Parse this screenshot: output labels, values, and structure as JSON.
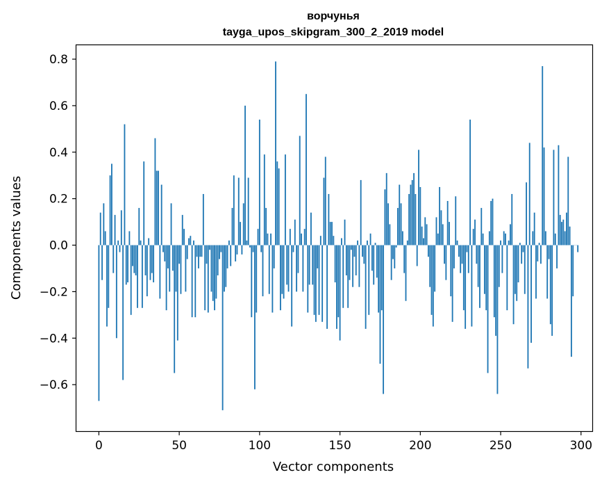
{
  "chart_data": {
    "type": "bar",
    "title": "ворчунья",
    "subtitle": "tayga_upos_skipgram_300_2_2019 model",
    "xlabel": "Vector components",
    "ylabel": "Components values",
    "xlim": [
      -14,
      307
    ],
    "ylim": [
      -0.8,
      0.86
    ],
    "xticks": [
      0,
      50,
      100,
      150,
      200,
      250,
      300
    ],
    "yticks": [
      -0.6,
      -0.4,
      -0.2,
      0.0,
      0.2,
      0.4,
      0.6,
      0.8
    ],
    "xtick_labels": [
      "0",
      "50",
      "100",
      "150",
      "200",
      "250",
      "300"
    ],
    "ytick_labels": [
      "−0.6",
      "−0.4",
      "−0.2",
      "0.0",
      "0.2",
      "0.4",
      "0.6",
      "0.8"
    ],
    "bar_color": "#1f77b4",
    "grid": false,
    "legend": null,
    "values": [
      -0.67,
      0.14,
      -0.15,
      0.18,
      0.06,
      -0.35,
      -0.27,
      0.3,
      0.35,
      -0.12,
      0.13,
      -0.4,
      0.02,
      -0.03,
      0.15,
      -0.58,
      0.52,
      -0.17,
      -0.16,
      0.06,
      -0.3,
      -0.09,
      -0.12,
      -0.13,
      -0.27,
      0.16,
      0.02,
      -0.27,
      0.36,
      -0.13,
      -0.22,
      0.03,
      -0.15,
      -0.12,
      -0.16,
      0.46,
      0.32,
      0.32,
      -0.23,
      0.26,
      -0.03,
      -0.07,
      -0.28,
      -0.1,
      -0.2,
      0.18,
      -0.11,
      -0.55,
      -0.2,
      -0.41,
      -0.08,
      -0.21,
      0.13,
      0.07,
      -0.2,
      -0.06,
      0.03,
      0.04,
      -0.31,
      0.02,
      -0.31,
      -0.05,
      -0.1,
      -0.05,
      -0.05,
      0.22,
      -0.28,
      -0.08,
      -0.29,
      -0.02,
      -0.2,
      -0.24,
      -0.28,
      -0.23,
      -0.13,
      -0.06,
      -0.03,
      -0.71,
      -0.2,
      -0.18,
      -0.1,
      0.02,
      -0.09,
      0.16,
      0.3,
      -0.07,
      -0.04,
      0.29,
      0.1,
      -0.04,
      0.18,
      0.6,
      0.02,
      0.29,
      -0.01,
      -0.31,
      -0.03,
      -0.62,
      -0.29,
      0.07,
      0.54,
      -0.03,
      -0.22,
      0.39,
      0.16,
      0.05,
      -0.21,
      0.05,
      -0.29,
      -0.1,
      0.79,
      0.36,
      0.33,
      -0.28,
      -0.21,
      -0.23,
      0.39,
      -0.17,
      -0.2,
      0.07,
      -0.35,
      -0.03,
      0.11,
      -0.2,
      -0.12,
      0.47,
      0.05,
      -0.2,
      0.07,
      0.65,
      -0.29,
      -0.17,
      0.14,
      -0.17,
      -0.3,
      -0.33,
      -0.1,
      -0.3,
      0.04,
      -0.33,
      0.29,
      0.38,
      -0.36,
      0.22,
      0.1,
      0.1,
      0.04,
      -0.16,
      -0.36,
      -0.31,
      -0.41,
      0.03,
      -0.27,
      0.11,
      -0.13,
      -0.27,
      -0.15,
      -0.02,
      -0.18,
      -0.05,
      -0.13,
      0.02,
      -0.18,
      0.28,
      -0.05,
      -0.08,
      -0.36,
      0.02,
      -0.3,
      0.05,
      -0.11,
      -0.17,
      0.01,
      -0.14,
      -0.29,
      -0.51,
      -0.28,
      -0.64,
      0.24,
      0.31,
      0.18,
      0.09,
      -0.15,
      -0.06,
      -0.1,
      -0.01,
      0.16,
      0.26,
      0.18,
      0.06,
      -0.12,
      -0.24,
      0.02,
      0.22,
      0.26,
      0.28,
      0.31,
      0.22,
      -0.09,
      0.41,
      0.25,
      0.08,
      0.03,
      0.12,
      0.09,
      -0.05,
      -0.18,
      -0.3,
      -0.35,
      -0.2,
      0.12,
      0.05,
      0.25,
      0.15,
      0.09,
      -0.08,
      -0.15,
      0.19,
      0.1,
      -0.22,
      -0.33,
      -0.1,
      0.21,
      0.02,
      -0.05,
      -0.12,
      -0.08,
      -0.28,
      -0.36,
      -0.03,
      -0.12,
      0.54,
      -0.35,
      0.07,
      0.11,
      -0.08,
      -0.18,
      -0.27,
      0.16,
      0.05,
      -0.21,
      -0.28,
      -0.55,
      0.06,
      0.19,
      0.2,
      -0.31,
      -0.39,
      -0.64,
      -0.18,
      0.02,
      -0.12,
      0.06,
      0.05,
      -0.28,
      0.02,
      0.09,
      0.22,
      -0.34,
      -0.21,
      -0.24,
      -0.16,
      0.01,
      -0.08,
      -0.03,
      -0.21,
      0.27,
      -0.53,
      0.44,
      -0.42,
      0.06,
      0.14,
      -0.23,
      -0.07,
      0.01,
      -0.08,
      0.77,
      0.42,
      0.06,
      -0.23,
      -0.06,
      -0.34,
      -0.39,
      0.41,
      0.05,
      -0.1,
      0.43,
      0.13,
      0.1,
      0.11,
      0.06,
      0.14,
      0.38,
      0.08,
      -0.48,
      -0.22,
      0.0,
      0.0,
      -0.03
    ]
  }
}
